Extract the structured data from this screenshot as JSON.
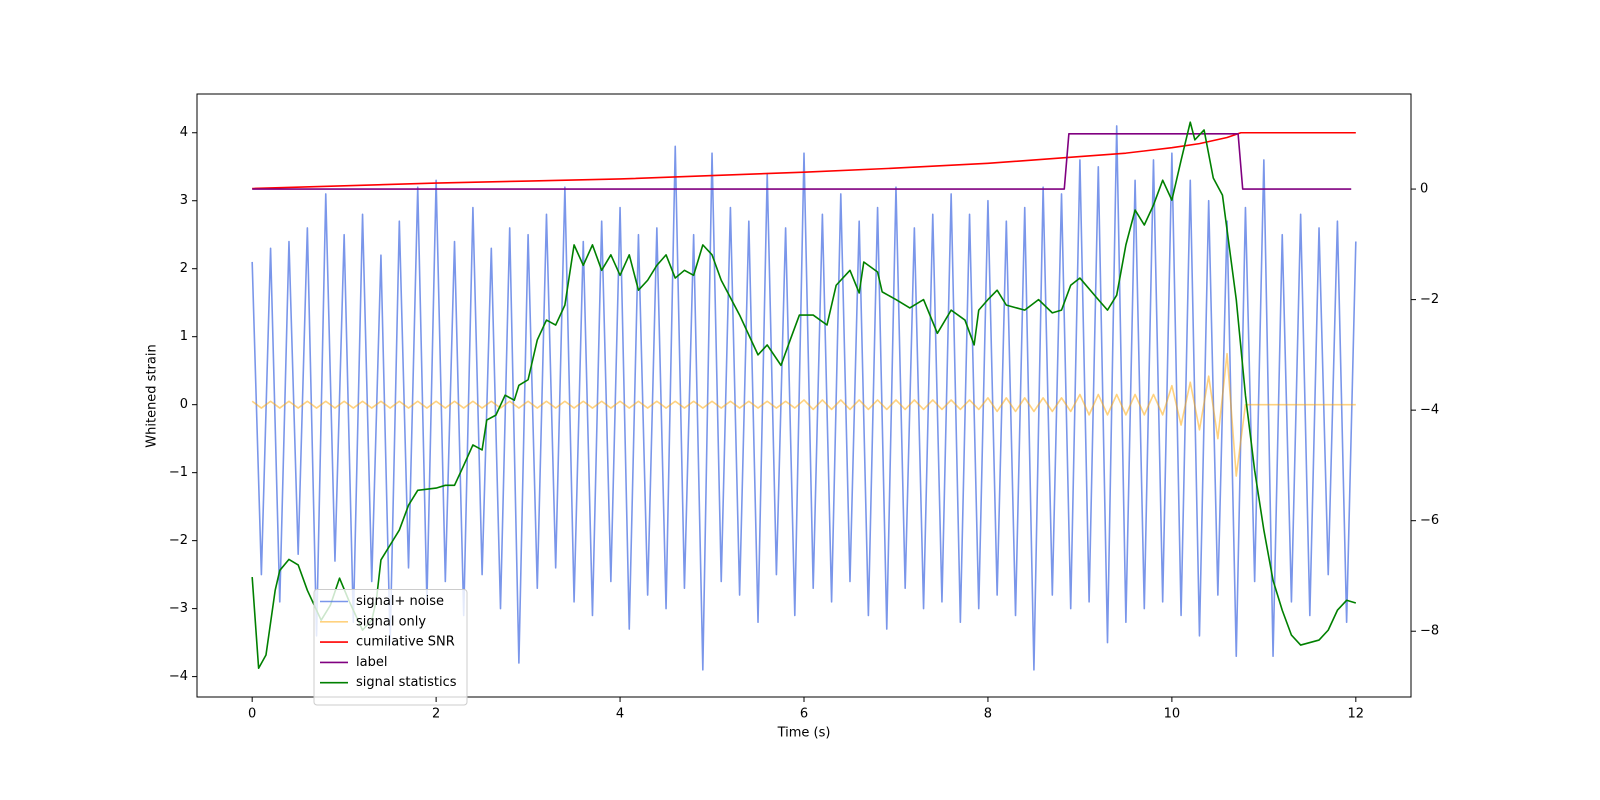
{
  "chart_data": {
    "type": "line",
    "xlabel": "Time (s)",
    "ylabel": "Whitened strain",
    "x": [
      0,
      0.1,
      0.2,
      0.3,
      0.4,
      0.5,
      0.6,
      0.7,
      0.8,
      0.9,
      1,
      1.1,
      1.2,
      1.3,
      1.4,
      1.5,
      1.6,
      1.7,
      1.8,
      1.9,
      2,
      2.1,
      2.2,
      2.3,
      2.4,
      2.5,
      2.6,
      2.7,
      2.8,
      2.9,
      3,
      3.1,
      3.2,
      3.3,
      3.4,
      3.5,
      3.6,
      3.7,
      3.8,
      3.9,
      4,
      4.1,
      4.2,
      4.3,
      4.4,
      4.5,
      4.6,
      4.7,
      4.8,
      4.9,
      5,
      5.1,
      5.2,
      5.3,
      5.4,
      5.5,
      5.6,
      5.7,
      5.8,
      5.9,
      6,
      6.1,
      6.2,
      6.3,
      6.4,
      6.5,
      6.6,
      6.7,
      6.8,
      6.9,
      7,
      7.1,
      7.2,
      7.3,
      7.4,
      7.5,
      7.6,
      7.7,
      7.8,
      7.9,
      8,
      8.1,
      8.2,
      8.3,
      8.4,
      8.5,
      8.6,
      8.7,
      8.8,
      8.9,
      9,
      9.1,
      9.2,
      9.3,
      9.4,
      9.5,
      9.6,
      9.7,
      9.8,
      9.9,
      10,
      10.1,
      10.2,
      10.3,
      10.4,
      10.5,
      10.6,
      10.7,
      10.8,
      10.9,
      11,
      11.1,
      11.2,
      11.3,
      11.4,
      11.5,
      11.6,
      11.7,
      11.8,
      11.9,
      12
    ],
    "series": [
      {
        "name": "signal+ noise",
        "color": "#4169e1",
        "alpha": 0.7,
        "values": [
          2.1,
          -2.5,
          2.3,
          -2.9,
          2.4,
          -2.2,
          2.6,
          -3.4,
          3.1,
          -2.3,
          2.5,
          -3.2,
          2.8,
          -2.6,
          2.2,
          -3.5,
          2.7,
          -2.4,
          3.2,
          -2.9,
          3.3,
          -2.6,
          2.4,
          -3.1,
          2.9,
          -2.5,
          2.3,
          -3.0,
          2.6,
          -3.8,
          2.5,
          -2.7,
          2.8,
          -2.4,
          3.2,
          -2.9,
          2.4,
          -3.1,
          2.7,
          -2.6,
          2.9,
          -3.3,
          2.5,
          -2.8,
          2.6,
          -3.0,
          3.8,
          -2.7,
          2.5,
          -3.9,
          3.7,
          -2.6,
          2.9,
          -2.8,
          2.7,
          -3.2,
          3.4,
          -2.5,
          2.6,
          -3.1,
          3.7,
          -2.7,
          2.8,
          -2.9,
          3.1,
          -2.6,
          2.7,
          -3.1,
          2.9,
          -3.3,
          3.2,
          -2.7,
          2.6,
          -3.0,
          2.8,
          -2.9,
          3.1,
          -3.2,
          2.8,
          -3.0,
          3.0,
          -2.8,
          2.7,
          -3.1,
          2.9,
          -3.9,
          3.2,
          -2.8,
          3.1,
          -3.0,
          3.6,
          -2.9,
          3.5,
          -3.5,
          4.1,
          -3.2,
          3.3,
          -3.0,
          3.6,
          -2.9,
          3.7,
          -3.1,
          3.3,
          -3.4,
          3.0,
          -2.8,
          2.7,
          -3.7,
          2.9,
          -2.6,
          3.6,
          -3.7,
          2.5,
          -2.9,
          2.8,
          -3.1,
          2.6,
          -2.5,
          2.7,
          -3.2,
          2.4
        ]
      },
      {
        "name": "signal only",
        "color": "#ffa500",
        "alpha": 0.5,
        "values": [
          0.05,
          -0.05,
          0.05,
          -0.05,
          0.05,
          -0.05,
          0.05,
          -0.05,
          0.05,
          -0.05,
          0.05,
          -0.05,
          0.05,
          -0.05,
          0.05,
          -0.05,
          0.05,
          -0.05,
          0.05,
          -0.05,
          0.05,
          -0.05,
          0.05,
          -0.05,
          0.05,
          -0.05,
          0.05,
          -0.05,
          0.05,
          -0.05,
          0.05,
          -0.05,
          0.05,
          -0.05,
          0.05,
          -0.05,
          0.05,
          -0.05,
          0.05,
          -0.05,
          0.05,
          -0.05,
          0.05,
          -0.05,
          0.05,
          -0.05,
          0.05,
          -0.05,
          0.05,
          -0.05,
          0.05,
          -0.05,
          0.05,
          -0.05,
          0.05,
          -0.05,
          0.05,
          -0.05,
          0.05,
          -0.05,
          0.07,
          -0.07,
          0.07,
          -0.07,
          0.07,
          -0.07,
          0.07,
          -0.07,
          0.07,
          -0.07,
          0.07,
          -0.07,
          0.07,
          -0.07,
          0.07,
          -0.07,
          0.07,
          -0.07,
          0.07,
          -0.07,
          0.1,
          -0.1,
          0.1,
          -0.1,
          0.1,
          -0.1,
          0.1,
          -0.1,
          0.1,
          -0.1,
          0.15,
          -0.15,
          0.15,
          -0.15,
          0.15,
          -0.15,
          0.15,
          -0.15,
          0.15,
          -0.15,
          0.28,
          -0.3,
          0.33,
          -0.37,
          0.42,
          -0.5,
          0.75,
          -1.05,
          0,
          0,
          0,
          0,
          0,
          0,
          0,
          0,
          0,
          0,
          0,
          0,
          0
        ]
      },
      {
        "name": "cumilative SNR",
        "color": "#ff0000",
        "alpha": 1,
        "x": [
          0,
          1,
          2,
          3,
          4,
          5,
          6,
          7,
          8,
          9,
          9.5,
          10,
          10.3,
          10.6,
          10.75,
          11,
          12
        ],
        "values": [
          3.18,
          3.22,
          3.26,
          3.29,
          3.32,
          3.37,
          3.42,
          3.48,
          3.55,
          3.65,
          3.7,
          3.78,
          3.84,
          3.93,
          4.0,
          4.0,
          4.0
        ]
      },
      {
        "name": "label",
        "color": "#800080",
        "alpha": 1,
        "axis": "y2",
        "x": [
          0,
          8.83,
          8.88,
          10.72,
          10.77,
          11.95
        ],
        "values": [
          0,
          0,
          1,
          1,
          0,
          0
        ]
      },
      {
        "name": "signal statistics",
        "color": "#008000",
        "alpha": 1,
        "axis": "y2",
        "x": [
          0,
          0.07,
          0.15,
          0.25,
          0.3,
          0.4,
          0.5,
          0.6,
          0.75,
          0.85,
          0.95,
          1.05,
          1.2,
          1.3,
          1.35,
          1.4,
          1.5,
          1.6,
          1.7,
          1.8,
          2,
          2.1,
          2.2,
          2.3,
          2.4,
          2.5,
          2.55,
          2.65,
          2.75,
          2.85,
          2.9,
          3,
          3.1,
          3.2,
          3.3,
          3.4,
          3.5,
          3.6,
          3.7,
          3.8,
          3.9,
          4,
          4.1,
          4.2,
          4.3,
          4.4,
          4.5,
          4.6,
          4.7,
          4.8,
          4.9,
          5,
          5.1,
          5.3,
          5.5,
          5.6,
          5.75,
          5.85,
          5.95,
          6.1,
          6.25,
          6.35,
          6.5,
          6.6,
          6.65,
          6.8,
          6.85,
          7,
          7.15,
          7.3,
          7.45,
          7.6,
          7.75,
          7.85,
          7.9,
          8,
          8.1,
          8.2,
          8.4,
          8.55,
          8.7,
          8.8,
          8.9,
          9,
          9.2,
          9.3,
          9.4,
          9.5,
          9.6,
          9.7,
          9.8,
          9.9,
          10,
          10.1,
          10.2,
          10.25,
          10.35,
          10.45,
          10.55,
          10.7,
          10.8,
          10.9,
          11,
          11.1,
          11.2,
          11.3,
          11.4,
          11.6,
          11.7,
          11.8,
          11.9,
          12
        ],
        "values": [
          -7.02,
          -8.67,
          -8.43,
          -7.26,
          -6.9,
          -6.7,
          -6.8,
          -7.26,
          -7.8,
          -7.53,
          -7.04,
          -7.44,
          -7.98,
          -7.8,
          -7.44,
          -6.71,
          -6.44,
          -6.17,
          -5.72,
          -5.45,
          -5.41,
          -5.36,
          -5.36,
          -5.0,
          -4.63,
          -4.72,
          -4.18,
          -4.09,
          -3.73,
          -3.82,
          -3.55,
          -3.45,
          -2.73,
          -2.37,
          -2.46,
          -2.1,
          -1.01,
          -1.38,
          -1.01,
          -1.47,
          -1.19,
          -1.56,
          -1.19,
          -1.83,
          -1.65,
          -1.38,
          -1.19,
          -1.61,
          -1.47,
          -1.56,
          -1.01,
          -1.19,
          -1.65,
          -2.28,
          -3.0,
          -2.82,
          -3.19,
          -2.73,
          -2.28,
          -2.28,
          -2.46,
          -1.74,
          -1.47,
          -1.88,
          -1.32,
          -1.5,
          -1.86,
          -2.0,
          -2.15,
          -2.0,
          -2.61,
          -2.19,
          -2.37,
          -2.82,
          -2.19,
          -2.0,
          -1.83,
          -2.1,
          -2.19,
          -2.0,
          -2.24,
          -2.19,
          -1.74,
          -1.61,
          -2.0,
          -2.19,
          -1.92,
          -1.01,
          -0.38,
          -0.65,
          -0.29,
          0.16,
          -0.2,
          0.52,
          1.21,
          0.89,
          1.07,
          0.2,
          -0.11,
          -2.0,
          -3.73,
          -5.09,
          -6.17,
          -7.08,
          -7.62,
          -8.07,
          -8.25,
          -8.16,
          -7.98,
          -7.62,
          -7.44,
          -7.49
        ]
      }
    ],
    "xlim": [
      -0.6,
      12.6
    ],
    "xticks": [
      0,
      2,
      4,
      6,
      8,
      10,
      12
    ],
    "ylim": [
      -4.3,
      4.57
    ],
    "yticks": [
      {
        "value": -4,
        "label": "−4"
      },
      {
        "value": -3,
        "label": "−3"
      },
      {
        "value": -2,
        "label": "−2"
      },
      {
        "value": -1,
        "label": "−1"
      },
      0,
      1,
      2,
      3,
      4
    ],
    "y2lim": [
      -9.19,
      1.72
    ],
    "y2ticks": [
      {
        "value": -8,
        "label": "−8"
      },
      {
        "value": -6,
        "label": "−6"
      },
      {
        "value": -4,
        "label": "−4"
      },
      {
        "value": -2,
        "label": "−2"
      },
      0
    ],
    "legend": "lower left"
  }
}
